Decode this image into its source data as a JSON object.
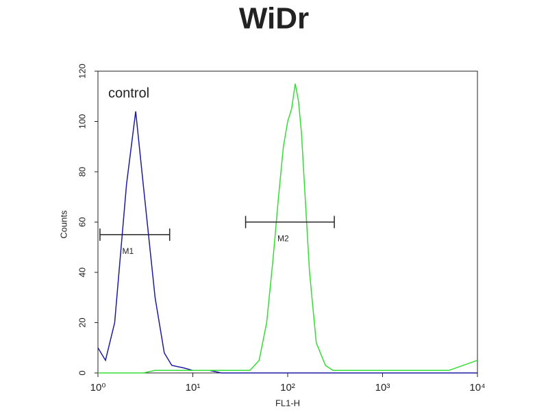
{
  "chart_data": {
    "type": "line",
    "title": "WiDr",
    "x_label": "FL1-H",
    "y_label": "Counts",
    "xscale": "log",
    "x": [
      1,
      1.2,
      1.5,
      2,
      2.5,
      3,
      4,
      5,
      6,
      8,
      10,
      15,
      20,
      30,
      40,
      50,
      60,
      70,
      80,
      90,
      100,
      110,
      120,
      130,
      140,
      150,
      170,
      200,
      250,
      300,
      400,
      500,
      1000,
      2000,
      5000,
      10000
    ],
    "series": [
      {
        "name": "control",
        "color": "#1a1aa0",
        "values": [
          10,
          5,
          20,
          75,
          104,
          75,
          30,
          8,
          3,
          2,
          1,
          1,
          0,
          0,
          0,
          0,
          0,
          0,
          0,
          0,
          0,
          0,
          0,
          0,
          0,
          0,
          0,
          0,
          0,
          0,
          0,
          0,
          0,
          0,
          0,
          0
        ]
      },
      {
        "name": "M2",
        "color": "#33dd33",
        "values": [
          0,
          0,
          0,
          0,
          0,
          0,
          1,
          1,
          1,
          1,
          1,
          1,
          1,
          1,
          1,
          5,
          20,
          45,
          70,
          90,
          100,
          105,
          115,
          108,
          95,
          75,
          40,
          12,
          3,
          1,
          1,
          1,
          1,
          1,
          1,
          5
        ]
      }
    ],
    "markers": [
      {
        "label": "M1",
        "x": [
          1.05,
          5.7
        ],
        "y": 55
      },
      {
        "label": "M2",
        "x": [
          36,
          310
        ],
        "y": 60
      }
    ],
    "xlim": [
      1,
      10000
    ],
    "xticks": [
      {
        "value": 1,
        "label": "10⁰"
      },
      {
        "value": 10,
        "label": "10¹"
      },
      {
        "value": 100,
        "label": "10²"
      },
      {
        "value": 1000,
        "label": "10³"
      },
      {
        "value": 10000,
        "label": "10⁴"
      }
    ],
    "ylim": [
      0,
      120
    ],
    "yticks": [
      0,
      20,
      40,
      60,
      80,
      100,
      120
    ]
  }
}
